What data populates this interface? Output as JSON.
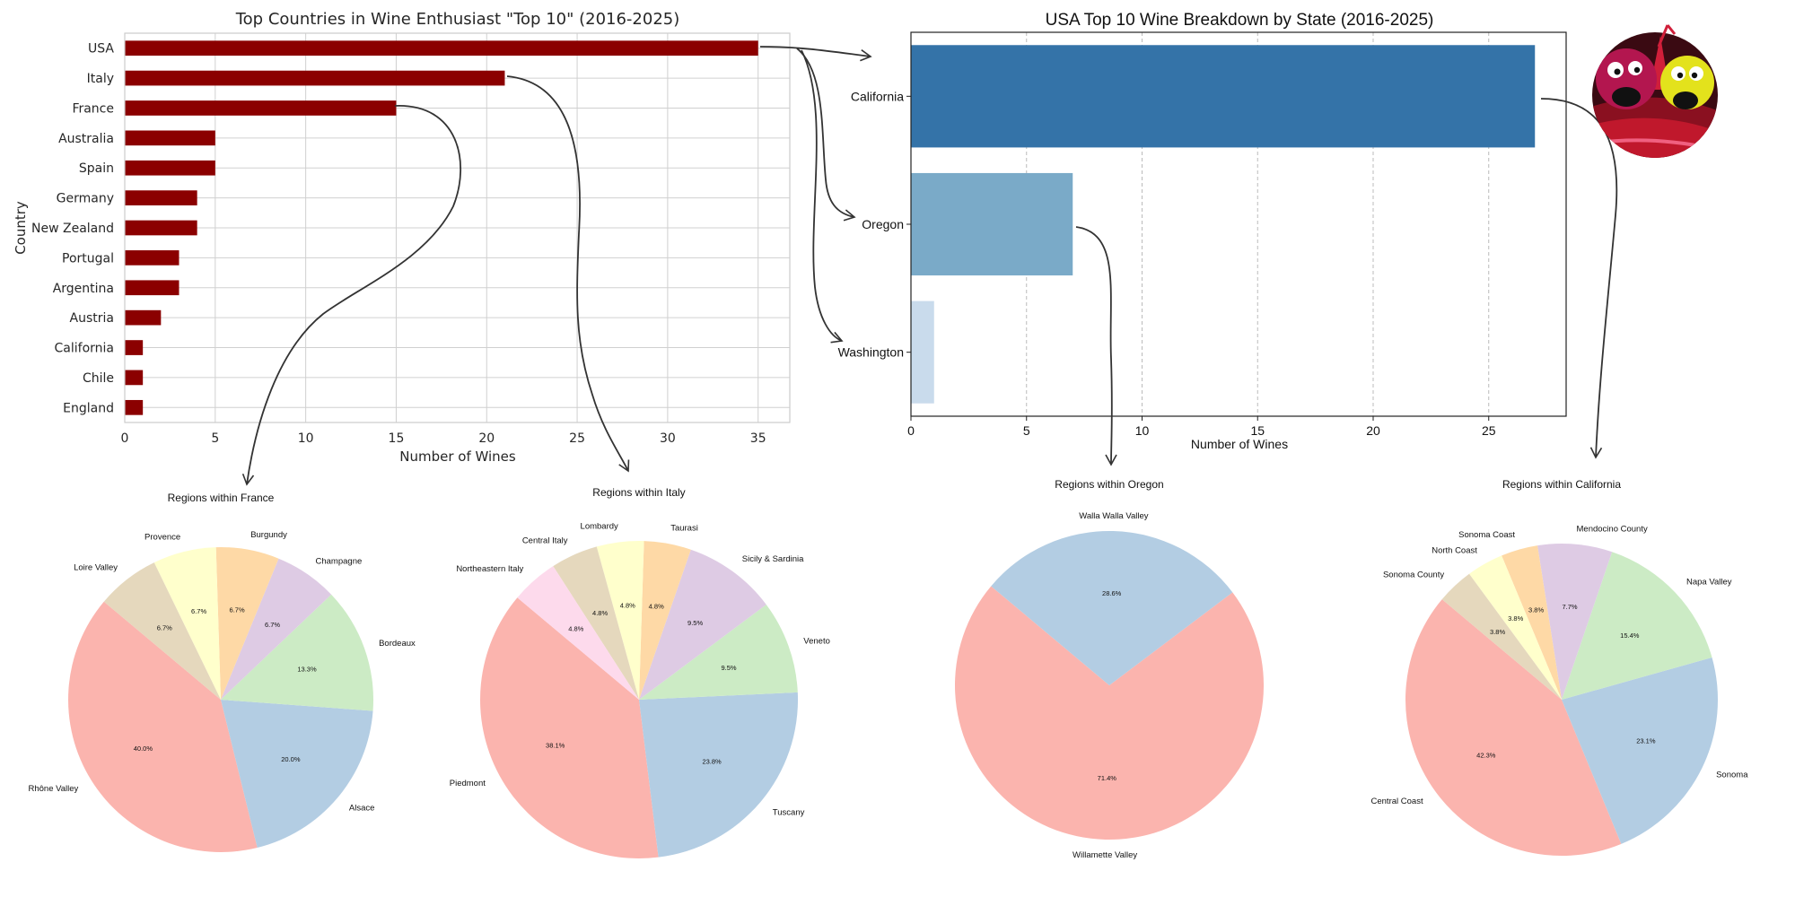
{
  "colors": {
    "country_bar": "#8b0000",
    "grid": "#d0d0d0",
    "arrow": "#333333",
    "state_bars": [
      "#3473a8",
      "#7aaac8",
      "#c9dbec"
    ],
    "pie_palette": [
      "#fbb4ae",
      "#b3cde3",
      "#ccebc5",
      "#decbe4",
      "#fed9a6",
      "#ffffcc",
      "#e5d8bd",
      "#fddaec"
    ]
  },
  "chart_data": [
    {
      "id": "countries",
      "type": "bar",
      "orientation": "horizontal",
      "title": "Top Countries in Wine Enthusiast \"Top 10\" (2016-2025)",
      "xlabel": "Number of Wines",
      "ylabel": "Country",
      "categories": [
        "USA",
        "Italy",
        "France",
        "Australia",
        "Spain",
        "Germany",
        "New Zealand",
        "Portugal",
        "Argentina",
        "Austria",
        "California",
        "Chile",
        "England"
      ],
      "values": [
        35,
        21,
        15,
        5,
        5,
        4,
        4,
        3,
        3,
        2,
        1,
        1,
        1
      ],
      "xticks": [
        0,
        5,
        10,
        15,
        20,
        25,
        30,
        35
      ],
      "xlim": [
        0,
        36.75
      ],
      "grid": true
    },
    {
      "id": "states",
      "type": "bar",
      "orientation": "horizontal",
      "title": "USA Top 10 Wine Breakdown by State (2016-2025)",
      "xlabel": "Number of Wines",
      "ylabel": "",
      "categories": [
        "California",
        "Oregon",
        "Washington"
      ],
      "values": [
        27,
        7,
        1
      ],
      "xticks": [
        0,
        5,
        10,
        15,
        20,
        25
      ],
      "xlim": [
        0,
        28.35
      ],
      "grid": true
    },
    {
      "id": "france",
      "type": "pie",
      "title": "Regions within France",
      "labels": [
        "Rhône Valley",
        "Alsace",
        "Bordeaux",
        "Champagne",
        "Burgundy",
        "Provence",
        "Loire Valley"
      ],
      "values": [
        40.0,
        20.0,
        13.3,
        6.7,
        6.7,
        6.7,
        6.7
      ],
      "pct_labels": [
        "40.0%",
        "20.0%",
        "13.3%",
        "6.7%",
        "6.7%",
        "6.7%",
        "6.7%"
      ]
    },
    {
      "id": "italy",
      "type": "pie",
      "title": "Regions within Italy",
      "labels": [
        "Piedmont",
        "Tuscany",
        "Veneto",
        "Sicily & Sardinia",
        "Taurasi",
        "Lombardy",
        "Central Italy",
        "Northeastern Italy"
      ],
      "values": [
        38.1,
        23.8,
        9.5,
        9.5,
        4.8,
        4.8,
        4.8,
        4.8
      ],
      "pct_labels": [
        "38.1%",
        "23.8%",
        "9.5%",
        "9.5%",
        "4.8%",
        "4.8%",
        "4.8%",
        "4.8%"
      ]
    },
    {
      "id": "oregon",
      "type": "pie",
      "title": "Regions within Oregon",
      "labels": [
        "Willamette Valley",
        "Walla Walla Valley"
      ],
      "values": [
        71.4,
        28.6
      ],
      "pct_labels": [
        "71.4%",
        "28.6%"
      ]
    },
    {
      "id": "california",
      "type": "pie",
      "title": "Regions within California",
      "labels": [
        "Central Coast",
        "Sonoma",
        "Napa Valley",
        "Mendocino County",
        "Sonoma Coast",
        "North Coast",
        "Sonoma County"
      ],
      "values": [
        42.3,
        23.1,
        15.4,
        7.7,
        3.8,
        3.8,
        3.8
      ],
      "pct_labels": [
        "42.3%",
        "23.1%",
        "15.4%",
        "7.7%",
        "3.8%",
        "3.8%",
        "3.8%"
      ]
    }
  ],
  "mascot": {
    "name": "mascot-logo-icon"
  }
}
